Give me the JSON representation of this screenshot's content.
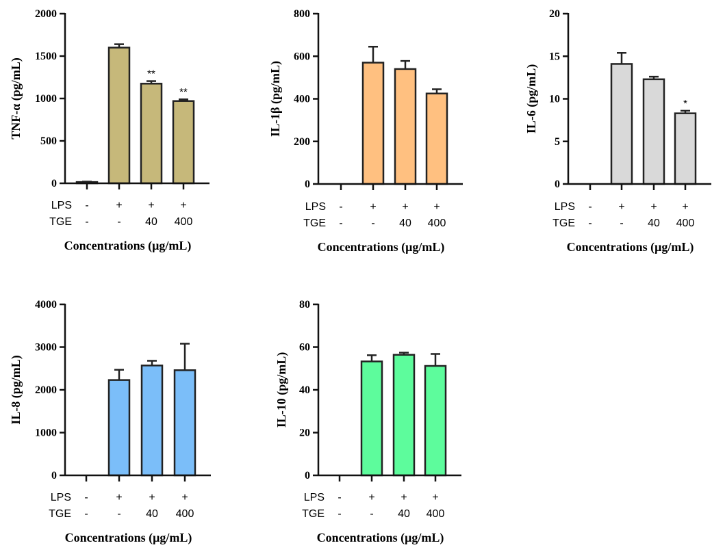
{
  "chart_data": [
    {
      "type": "bar",
      "ylabel": "TNF-α (pg/mL)",
      "xlabel": "Concentrations (μg/mL)",
      "ylim": [
        0,
        2000
      ],
      "yticks": [
        "0",
        "500",
        "1000",
        "1500",
        "2000"
      ],
      "ytick_values": [
        0,
        500,
        1000,
        1500,
        2000
      ],
      "row_labels": [
        "LPS",
        "TGE"
      ],
      "lps": [
        "-",
        "+",
        "+",
        "+"
      ],
      "tge": [
        "-",
        "-",
        "40",
        "400"
      ],
      "values": [
        15,
        1600,
        1175,
        970
      ],
      "errors": [
        5,
        40,
        30,
        20
      ],
      "significance": [
        "",
        "",
        "**",
        "**"
      ],
      "color": "#c6b87a"
    },
    {
      "type": "bar",
      "ylabel": "IL-1β (pg/mL)",
      "xlabel": "Concentrations (μg/mL)",
      "ylim": [
        0,
        800
      ],
      "yticks": [
        "0",
        "200",
        "400",
        "600",
        "800"
      ],
      "ytick_values": [
        0,
        200,
        400,
        600,
        800
      ],
      "row_labels": [
        "LPS",
        "TGE"
      ],
      "lps": [
        "-",
        "+",
        "+",
        "+"
      ],
      "tge": [
        "-",
        "-",
        "40",
        "400"
      ],
      "values": [
        0,
        570,
        540,
        425
      ],
      "errors": [
        0,
        75,
        38,
        20
      ],
      "significance": [
        "",
        "",
        "",
        ""
      ],
      "color": "#ffc080"
    },
    {
      "type": "bar",
      "ylabel": "IL-6 (pg/mL)",
      "xlabel": "Concentrations (μg/mL)",
      "ylim": [
        0,
        20
      ],
      "yticks": [
        "0",
        "5",
        "10",
        "15",
        "20"
      ],
      "ytick_values": [
        0,
        5,
        10,
        15,
        20
      ],
      "row_labels": [
        "LPS",
        "TGE"
      ],
      "lps": [
        "-",
        "+",
        "+",
        "+"
      ],
      "tge": [
        "-",
        "-",
        "40",
        "400"
      ],
      "values": [
        0,
        14.1,
        12.3,
        8.3
      ],
      "errors": [
        0,
        1.3,
        0.3,
        0.3
      ],
      "significance": [
        "",
        "",
        "",
        "*"
      ],
      "color": "#d9d9d9"
    },
    {
      "type": "bar",
      "ylabel": "IL-8 (pg/mL)",
      "xlabel": "Concentrations (μg/mL)",
      "ylim": [
        0,
        4000
      ],
      "yticks": [
        "0",
        "1000",
        "2000",
        "3000",
        "4000"
      ],
      "ytick_values": [
        0,
        1000,
        2000,
        3000,
        4000
      ],
      "row_labels": [
        "LPS",
        "TGE"
      ],
      "lps": [
        "-",
        "+",
        "+",
        "+"
      ],
      "tge": [
        "-",
        "-",
        "40",
        "400"
      ],
      "values": [
        0,
        2230,
        2570,
        2460
      ],
      "errors": [
        0,
        240,
        110,
        620
      ],
      "significance": [
        "",
        "",
        "",
        ""
      ],
      "color": "#7bbef9"
    },
    {
      "type": "bar",
      "ylabel": "IL-10 (pg/mL)",
      "xlabel": "Concentrations (μg/mL)",
      "ylim": [
        0,
        80
      ],
      "yticks": [
        "0",
        "20",
        "40",
        "60",
        "80"
      ],
      "ytick_values": [
        0,
        20,
        40,
        60,
        80
      ],
      "row_labels": [
        "LPS",
        "TGE"
      ],
      "lps": [
        "-",
        "+",
        "+",
        "+"
      ],
      "tge": [
        "-",
        "-",
        "40",
        "400"
      ],
      "values": [
        0,
        53.3,
        56.4,
        51.2
      ],
      "errors": [
        0,
        2.9,
        1.0,
        5.6
      ],
      "significance": [
        "",
        "",
        "",
        ""
      ],
      "color": "#5dfc9c"
    }
  ]
}
